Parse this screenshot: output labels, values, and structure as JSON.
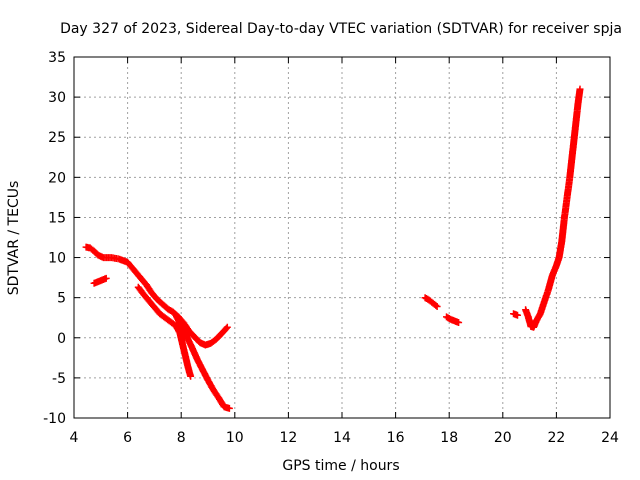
{
  "chart_data": {
    "type": "scatter",
    "title": "Day 327 of 2023, Sidereal Day-to-day VTEC variation (SDTVAR) for receiver spja",
    "xlabel": "GPS time / hours",
    "ylabel": "SDTVAR / TECUs",
    "xlim": [
      4,
      24
    ],
    "ylim": [
      -10,
      35
    ],
    "xticks": [
      4,
      6,
      8,
      10,
      12,
      14,
      16,
      18,
      20,
      22,
      24
    ],
    "yticks": [
      -10,
      -5,
      0,
      5,
      10,
      15,
      20,
      25,
      30,
      35
    ],
    "grid": true,
    "marker": "plus",
    "color": "#ff0000",
    "series": [
      {
        "name": "SDTVAR",
        "segments": [
          [
            [
              4.45,
              11.3
            ],
            [
              4.6,
              11.2
            ],
            [
              4.75,
              10.8
            ],
            [
              4.9,
              10.3
            ],
            [
              5.1,
              10.0
            ],
            [
              5.4,
              10.0
            ],
            [
              5.7,
              9.8
            ],
            [
              6.0,
              9.4
            ],
            [
              6.2,
              8.6
            ],
            [
              6.45,
              7.6
            ],
            [
              6.7,
              6.6
            ],
            [
              6.9,
              5.6
            ],
            [
              7.1,
              4.8
            ],
            [
              7.3,
              4.2
            ],
            [
              7.5,
              3.6
            ],
            [
              7.7,
              3.2
            ],
            [
              7.9,
              2.6
            ],
            [
              8.1,
              1.8
            ],
            [
              8.3,
              0.8
            ],
            [
              8.5,
              0.1
            ],
            [
              8.7,
              -0.6
            ],
            [
              8.9,
              -0.9
            ],
            [
              9.1,
              -0.7
            ],
            [
              9.3,
              -0.2
            ],
            [
              9.5,
              0.5
            ],
            [
              9.72,
              1.3
            ]
          ],
          [
            [
              4.75,
              6.8
            ],
            [
              4.9,
              7.0
            ],
            [
              5.05,
              7.2
            ],
            [
              5.2,
              7.4
            ]
          ],
          [
            [
              6.4,
              6.3
            ],
            [
              6.6,
              5.4
            ],
            [
              6.8,
              4.6
            ],
            [
              7.0,
              3.8
            ],
            [
              7.2,
              3.0
            ],
            [
              7.4,
              2.5
            ],
            [
              7.6,
              2.0
            ],
            [
              7.8,
              1.5
            ],
            [
              7.95,
              0.6
            ],
            [
              8.05,
              -0.8
            ],
            [
              8.15,
              -2.2
            ],
            [
              8.25,
              -3.6
            ],
            [
              8.35,
              -4.8
            ]
          ],
          [
            [
              7.8,
              2.8
            ],
            [
              8.0,
              1.5
            ],
            [
              8.2,
              0.2
            ],
            [
              8.4,
              -1.2
            ],
            [
              8.6,
              -2.7
            ],
            [
              8.8,
              -4.0
            ],
            [
              9.0,
              -5.3
            ],
            [
              9.2,
              -6.5
            ],
            [
              9.4,
              -7.5
            ],
            [
              9.6,
              -8.6
            ],
            [
              9.8,
              -8.8
            ]
          ],
          [
            [
              17.1,
              5.0
            ],
            [
              17.25,
              4.7
            ],
            [
              17.4,
              4.3
            ],
            [
              17.55,
              3.9
            ]
          ],
          [
            [
              17.9,
              2.6
            ],
            [
              18.05,
              2.3
            ],
            [
              18.2,
              2.1
            ],
            [
              18.35,
              1.9
            ]
          ],
          [
            [
              20.4,
              3.0
            ],
            [
              20.55,
              2.8
            ]
          ],
          [
            [
              20.85,
              3.5
            ],
            [
              20.95,
              2.6
            ],
            [
              21.05,
              1.4
            ],
            [
              21.15,
              1.3
            ],
            [
              21.25,
              2.1
            ],
            [
              21.4,
              3.0
            ],
            [
              21.55,
              4.5
            ],
            [
              21.7,
              6.0
            ],
            [
              21.85,
              7.8
            ],
            [
              22.0,
              9.0
            ],
            [
              22.1,
              10.0
            ],
            [
              22.2,
              12.0
            ],
            [
              22.3,
              15.0
            ],
            [
              22.4,
              17.5
            ],
            [
              22.5,
              20.0
            ],
            [
              22.6,
              23.0
            ],
            [
              22.7,
              26.0
            ],
            [
              22.8,
              29.0
            ],
            [
              22.88,
              31.0
            ]
          ]
        ]
      }
    ]
  }
}
